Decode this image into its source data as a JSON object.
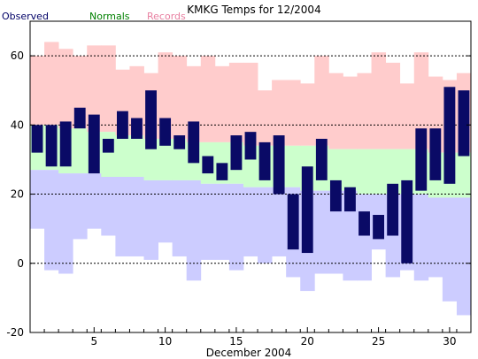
{
  "chart_data": {
    "type": "bar",
    "title": "KMKG Temps for 12/2004",
    "xlabel": "December 2004",
    "ylabel": "",
    "xlim": [
      0.5,
      31.5
    ],
    "ylim": [
      -20,
      70
    ],
    "x_ticks": [
      5,
      10,
      15,
      20,
      25,
      30
    ],
    "x_minor_step": 1,
    "y_ticks": [
      -20,
      0,
      20,
      40,
      60
    ],
    "gridlines_y": [
      0,
      20,
      40,
      60
    ],
    "legend": [
      {
        "label": "Observed",
        "color": "#000066"
      },
      {
        "label": "Normals",
        "color": "#008000"
      },
      {
        "label": "Records",
        "color": "#e87fa0"
      }
    ],
    "colors": {
      "observed": "#0a0a66",
      "normals": "#ccffcc",
      "record_high": "#ffcccc",
      "record_low": "#ccccff"
    },
    "days": [
      1,
      2,
      3,
      4,
      5,
      6,
      7,
      8,
      9,
      10,
      11,
      12,
      13,
      14,
      15,
      16,
      17,
      18,
      19,
      20,
      21,
      22,
      23,
      24,
      25,
      26,
      27,
      28,
      29,
      30,
      31
    ],
    "record_high": [
      60,
      64,
      62,
      60,
      63,
      63,
      56,
      57,
      55,
      61,
      60,
      57,
      60,
      57,
      58,
      58,
      50,
      53,
      53,
      52,
      60,
      55,
      54,
      55,
      61,
      58,
      52,
      61,
      54,
      53,
      55
    ],
    "record_low": [
      10,
      -2,
      -3,
      7,
      10,
      8,
      2,
      2,
      1,
      6,
      2,
      -5,
      1,
      1,
      -2,
      2,
      0,
      2,
      -4,
      -8,
      -3,
      -3,
      -5,
      -5,
      4,
      -4,
      -2,
      -5,
      -4,
      -11,
      -15
    ],
    "normal_high": [
      40,
      40,
      39,
      39,
      38,
      38,
      37,
      37,
      36,
      36,
      36,
      35,
      35,
      35,
      35,
      34,
      34,
      34,
      34,
      34,
      34,
      33,
      33,
      33,
      33,
      33,
      33,
      33,
      32,
      32,
      32
    ],
    "normal_low": [
      27,
      27,
      26,
      26,
      26,
      25,
      25,
      25,
      24,
      24,
      24,
      24,
      23,
      23,
      23,
      22,
      22,
      22,
      22,
      21,
      21,
      21,
      21,
      20,
      20,
      20,
      20,
      20,
      19,
      19,
      19
    ],
    "observed_high": [
      40,
      40,
      41,
      45,
      43,
      36,
      44,
      42,
      50,
      42,
      37,
      41,
      31,
      29,
      37,
      38,
      35,
      37,
      20,
      28,
      36,
      24,
      22,
      15,
      14,
      23,
      24,
      39,
      39,
      51,
      50
    ],
    "observed_low": [
      32,
      28,
      28,
      39,
      26,
      32,
      36,
      36,
      33,
      34,
      33,
      29,
      26,
      24,
      27,
      30,
      24,
      20,
      4,
      3,
      24,
      15,
      15,
      8,
      7,
      8,
      0,
      21,
      24,
      23,
      31
    ]
  }
}
